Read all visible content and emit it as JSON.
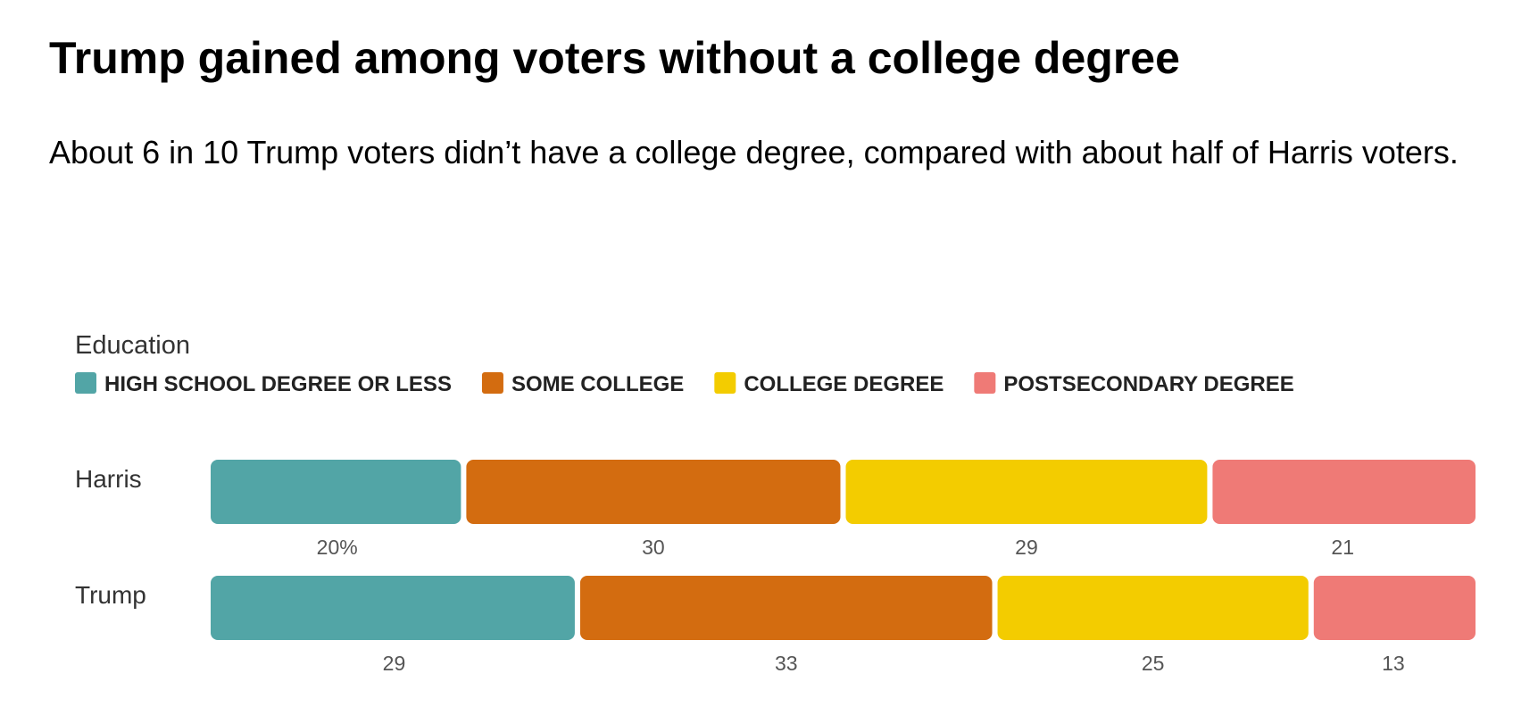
{
  "header": {
    "title": "Trump gained among voters without a college degree",
    "subtitle": "About 6 in 10 Trump voters didn’t have a college degree, compared with about half of Harris voters."
  },
  "chart_data": {
    "type": "bar",
    "orientation": "horizontal",
    "stacked": true,
    "legend_title": "Education",
    "legend_position": "top-left",
    "categories": [
      "Harris",
      "Trump"
    ],
    "series": [
      {
        "name": "HIGH SCHOOL DEGREE OR LESS",
        "color": "#52a5a6",
        "values": [
          20,
          29
        ],
        "labels": [
          "20%",
          "29"
        ]
      },
      {
        "name": "SOME COLLEGE",
        "color": "#d36c10",
        "values": [
          30,
          33
        ],
        "labels": [
          "30",
          "33"
        ]
      },
      {
        "name": "COLLEGE DEGREE",
        "color": "#f3cc00",
        "values": [
          29,
          25
        ],
        "labels": [
          "29",
          "25"
        ]
      },
      {
        "name": "POSTSECONDARY DEGREE",
        "color": "#ef7a76",
        "values": [
          21,
          13
        ],
        "labels": [
          "21",
          "13"
        ]
      }
    ],
    "xlim": [
      0,
      100
    ],
    "grid": false
  }
}
